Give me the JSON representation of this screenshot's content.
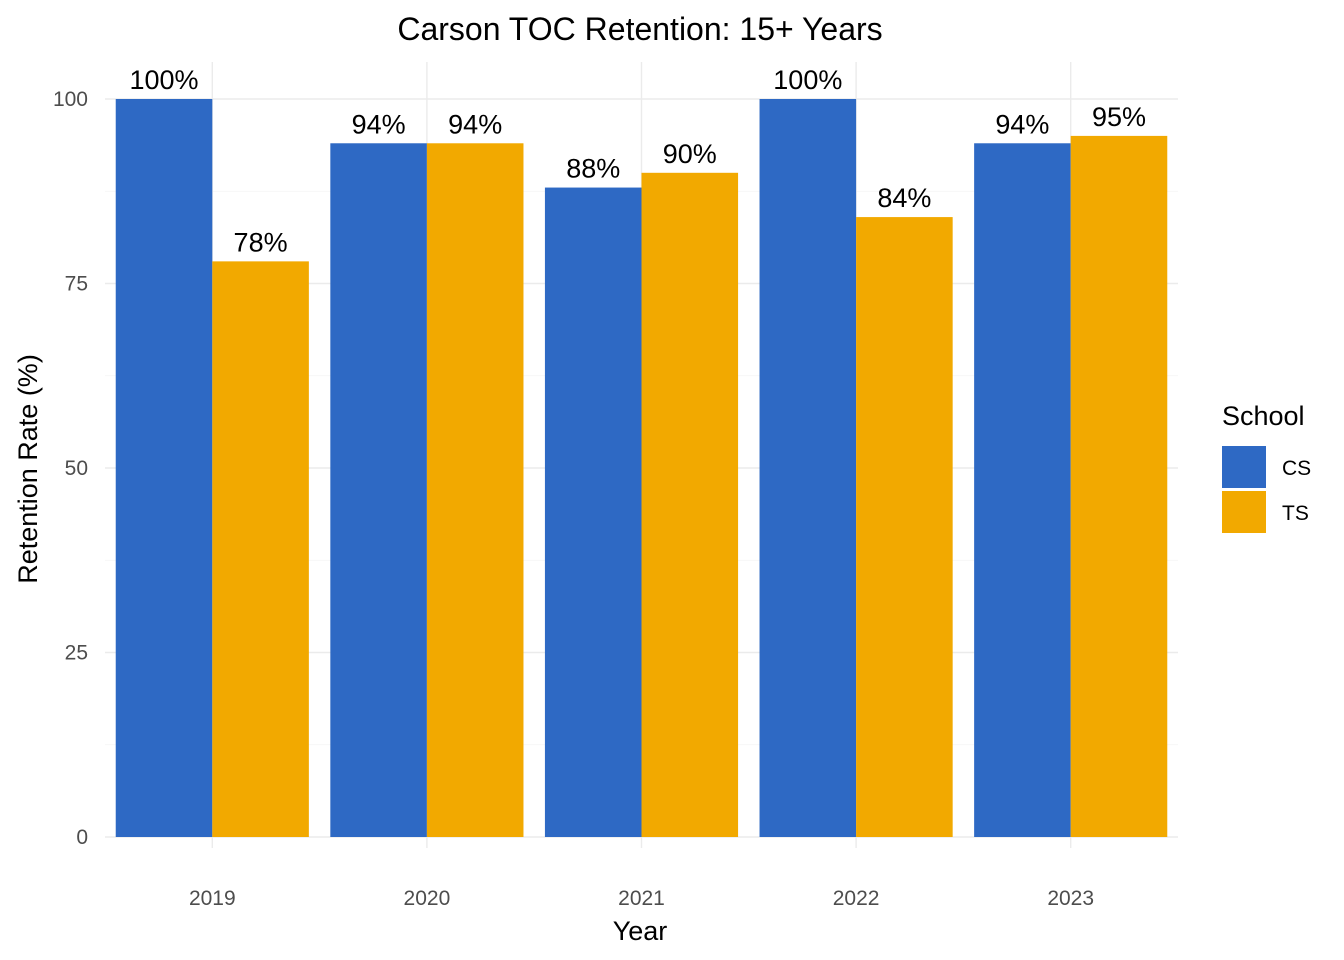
{
  "chart_data": {
    "type": "bar",
    "title": "Carson TOC Retention: 15+ Years",
    "xlabel": "Year",
    "ylabel": "Retention Rate (%)",
    "categories": [
      "2019",
      "2020",
      "2021",
      "2022",
      "2023"
    ],
    "ylim": [
      0,
      100
    ],
    "yticks": [
      0,
      25,
      50,
      75,
      100
    ],
    "grid": true,
    "legend": {
      "title": "School",
      "position": "right"
    },
    "series": [
      {
        "name": "CS",
        "color": "#2E69C4",
        "values": [
          100,
          94,
          88,
          100,
          94
        ],
        "labels": [
          "100%",
          "94%",
          "88%",
          "100%",
          "94%"
        ]
      },
      {
        "name": "TS",
        "color": "#F2A900",
        "values": [
          78,
          94,
          90,
          84,
          95
        ],
        "labels": [
          "78%",
          "94%",
          "90%",
          "84%",
          "95%"
        ]
      }
    ]
  }
}
